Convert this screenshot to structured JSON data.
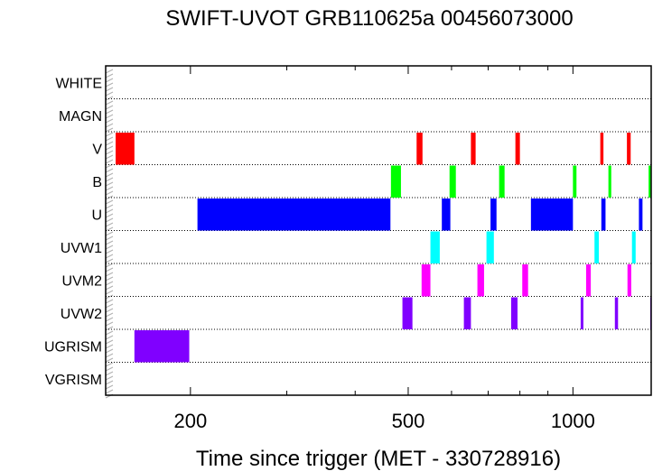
{
  "chart_data": {
    "type": "timeline",
    "title": "SWIFT-UVOT GRB110625a 00456073000",
    "xlabel": "Time since trigger (MET - 330728916)",
    "x_scale": "log",
    "xlim": [
      140,
      1390
    ],
    "xticks": [
      200,
      500,
      1000
    ],
    "tick_labels": [
      "200",
      "500",
      "1000"
    ],
    "grid": "dotted row separators",
    "rows": [
      "WHITE",
      "MAGN",
      "V",
      "B",
      "U",
      "UVW1",
      "UVM2",
      "UVW2",
      "UGRISM",
      "VGRISM"
    ],
    "colors": {
      "V": "#ff0000",
      "B": "#00ff00",
      "U": "#0000ff",
      "UVW1": "#00ffff",
      "UVM2": "#ff00ff",
      "UVW2": "#8000ff",
      "UGRISM": "#8000ff"
    },
    "exposures": [
      {
        "filter": "V",
        "start": 144,
        "end": 158
      },
      {
        "filter": "V",
        "start": 518,
        "end": 531
      },
      {
        "filter": "V",
        "start": 651,
        "end": 664
      },
      {
        "filter": "V",
        "start": 785,
        "end": 800
      },
      {
        "filter": "V",
        "start": 1122,
        "end": 1137
      },
      {
        "filter": "V",
        "start": 1255,
        "end": 1275
      },
      {
        "filter": "B",
        "start": 465,
        "end": 485
      },
      {
        "filter": "B",
        "start": 595,
        "end": 611
      },
      {
        "filter": "B",
        "start": 733,
        "end": 750
      },
      {
        "filter": "B",
        "start": 1000,
        "end": 1015
      },
      {
        "filter": "B",
        "start": 1161,
        "end": 1175
      },
      {
        "filter": "B",
        "start": 1375,
        "end": 1392
      },
      {
        "filter": "U",
        "start": 206,
        "end": 464
      },
      {
        "filter": "U",
        "start": 576,
        "end": 597
      },
      {
        "filter": "U",
        "start": 707,
        "end": 725
      },
      {
        "filter": "U",
        "start": 838,
        "end": 1000
      },
      {
        "filter": "U",
        "start": 1127,
        "end": 1147
      },
      {
        "filter": "U",
        "start": 1320,
        "end": 1340
      },
      {
        "filter": "UVW1",
        "start": 549,
        "end": 571
      },
      {
        "filter": "UVW1",
        "start": 695,
        "end": 717
      },
      {
        "filter": "UVW1",
        "start": 1095,
        "end": 1115
      },
      {
        "filter": "UVW1",
        "start": 1282,
        "end": 1302
      },
      {
        "filter": "UVM2",
        "start": 529,
        "end": 549
      },
      {
        "filter": "UVM2",
        "start": 669,
        "end": 688
      },
      {
        "filter": "UVM2",
        "start": 808,
        "end": 828
      },
      {
        "filter": "UVM2",
        "start": 1057,
        "end": 1078
      },
      {
        "filter": "UVM2",
        "start": 1258,
        "end": 1278
      },
      {
        "filter": "UVW2",
        "start": 488,
        "end": 509
      },
      {
        "filter": "UVW2",
        "start": 632,
        "end": 651
      },
      {
        "filter": "UVW2",
        "start": 771,
        "end": 792
      },
      {
        "filter": "UVW2",
        "start": 1033,
        "end": 1045
      },
      {
        "filter": "UVW2",
        "start": 1193,
        "end": 1209
      },
      {
        "filter": "UVW2",
        "start": 1385,
        "end": 1395
      },
      {
        "filter": "UGRISM",
        "start": 158,
        "end": 199
      }
    ]
  }
}
